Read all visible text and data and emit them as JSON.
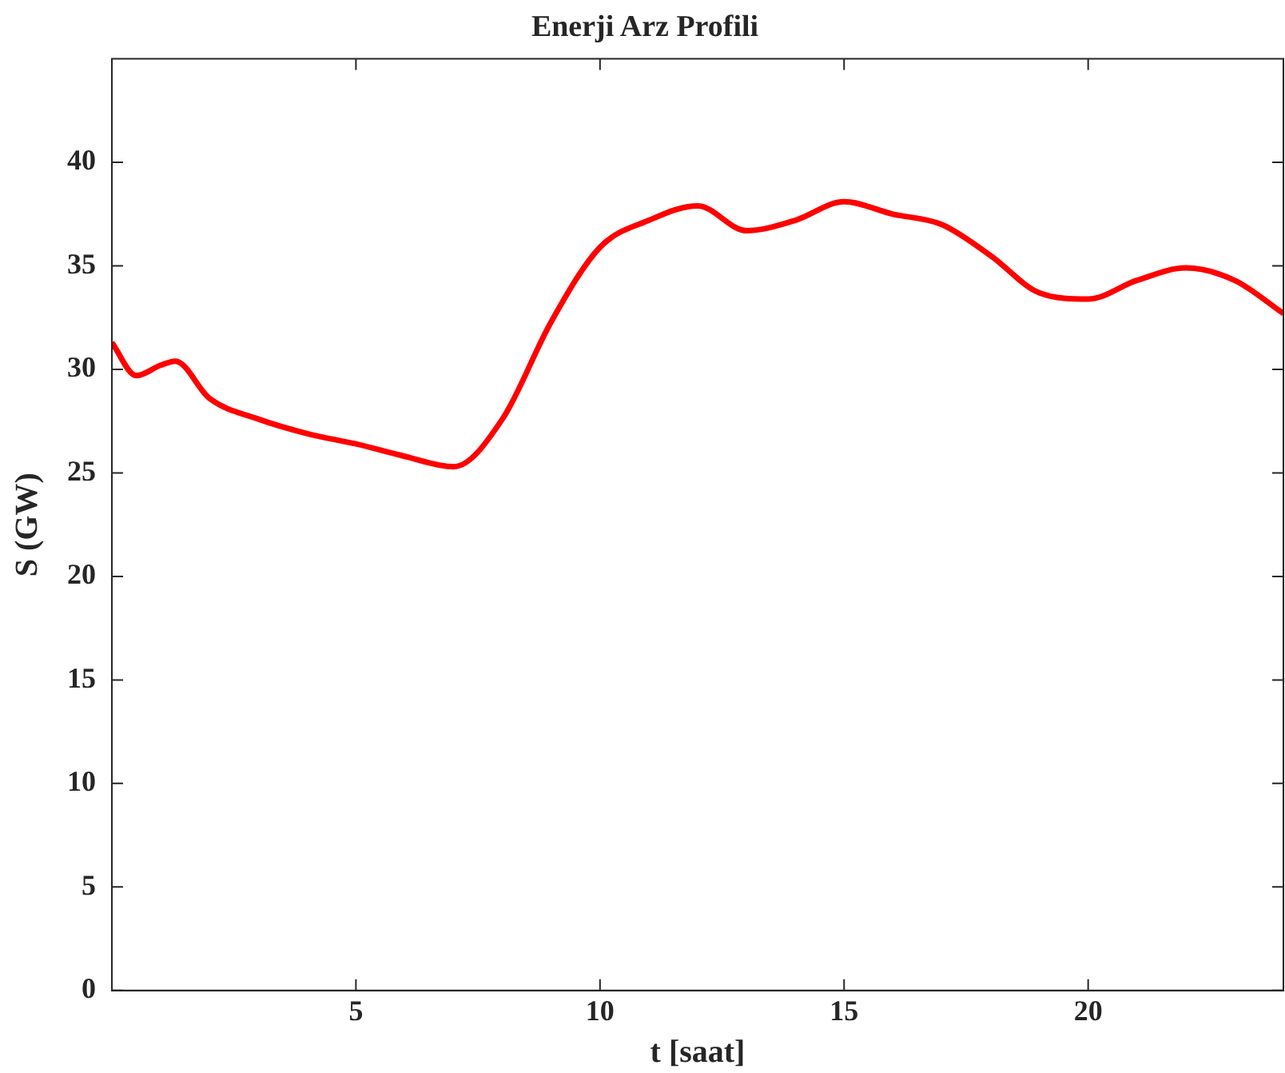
{
  "chart_data": {
    "type": "line",
    "title": "Enerji Arz Profili",
    "xlabel": "t [saat]",
    "ylabel": "S (GW)",
    "x": [
      0,
      0.5,
      1,
      1.3,
      2,
      3,
      4,
      5,
      6,
      7,
      8,
      9,
      10,
      11,
      12,
      13,
      14,
      15,
      16,
      17,
      18,
      19,
      20,
      21,
      22,
      23,
      24
    ],
    "series": [
      {
        "color": "#ff0000",
        "values": [
          31.3,
          29.7,
          30.2,
          30.4,
          28.6,
          27.6,
          26.9,
          26.4,
          25.8,
          25.3,
          27.6,
          32.3,
          35.9,
          37.2,
          37.9,
          36.7,
          37.2,
          38.1,
          37.5,
          37.0,
          35.5,
          33.7,
          33.4,
          34.3,
          34.9,
          34.3,
          32.7
        ]
      }
    ],
    "xlim": [
      0,
      24
    ],
    "xticks": [
      5,
      10,
      15,
      20
    ],
    "ylim": [
      0,
      45
    ],
    "yticks": [
      0,
      5,
      10,
      15,
      20,
      25,
      30,
      35,
      40
    ],
    "grid": false,
    "legend": false,
    "marker": "none",
    "line_style": "solid"
  }
}
